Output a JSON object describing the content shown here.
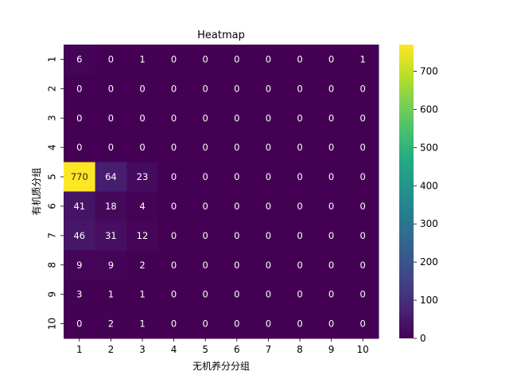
{
  "chart_data": {
    "type": "heatmap",
    "title": "Heatmap",
    "xlabel": "无机养分分组",
    "ylabel": "有机质分组",
    "x_categories": [
      "1",
      "2",
      "3",
      "4",
      "5",
      "6",
      "7",
      "8",
      "9",
      "10"
    ],
    "y_categories": [
      "1",
      "2",
      "3",
      "4",
      "5",
      "6",
      "7",
      "8",
      "9",
      "10"
    ],
    "values": [
      [
        6,
        0,
        1,
        0,
        0,
        0,
        0,
        0,
        0,
        1
      ],
      [
        0,
        0,
        0,
        0,
        0,
        0,
        0,
        0,
        0,
        0
      ],
      [
        0,
        0,
        0,
        0,
        0,
        0,
        0,
        0,
        0,
        0
      ],
      [
        0,
        0,
        0,
        0,
        0,
        0,
        0,
        0,
        0,
        0
      ],
      [
        770,
        64,
        23,
        0,
        0,
        0,
        0,
        0,
        0,
        0
      ],
      [
        41,
        18,
        4,
        0,
        0,
        0,
        0,
        0,
        0,
        0
      ],
      [
        46,
        31,
        12,
        0,
        0,
        0,
        0,
        0,
        0,
        0
      ],
      [
        9,
        9,
        2,
        0,
        0,
        0,
        0,
        0,
        0,
        0
      ],
      [
        3,
        1,
        1,
        0,
        0,
        0,
        0,
        0,
        0,
        0
      ],
      [
        0,
        2,
        1,
        0,
        0,
        0,
        0,
        0,
        0,
        0
      ]
    ],
    "colorscale": "viridis",
    "vmin": 0,
    "vmax": 770,
    "colorbar_ticks": [
      "0",
      "100",
      "200",
      "300",
      "400",
      "500",
      "600",
      "700"
    ],
    "annotations": true,
    "grid": false,
    "legend": "colorbar-right"
  }
}
